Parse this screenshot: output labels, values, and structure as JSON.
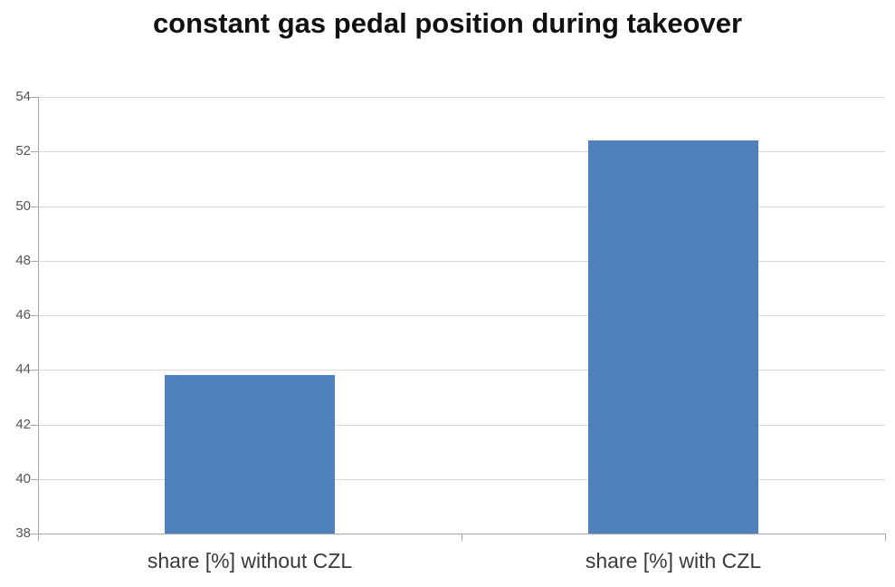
{
  "chart_data": {
    "type": "bar",
    "title": "constant gas pedal position during takeover",
    "categories": [
      "share [%] without CZL",
      "share [%] with CZL"
    ],
    "values": [
      43.8,
      52.4
    ],
    "xlabel": "",
    "ylabel": "",
    "ylim": [
      38,
      54
    ],
    "ytick_step": 2,
    "ytick_labels": [
      "38",
      "40",
      "42",
      "44",
      "46",
      "48",
      "50",
      "52",
      "54"
    ],
    "grid": "horizontal",
    "legend": "none",
    "colors": {
      "bar_fill": "#4f81bd",
      "gridline": "#d9d9d9",
      "axis_line": "#a6a6a6",
      "tick_label": "#555555",
      "category_label": "#3a3a3a",
      "title": "#111111",
      "background": "#ffffff"
    }
  }
}
